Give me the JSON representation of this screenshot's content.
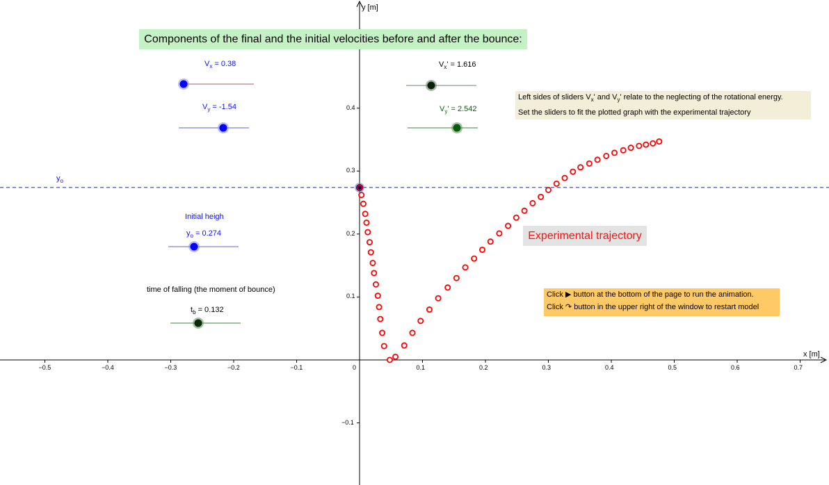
{
  "axes": {
    "x_label": "x [m]",
    "y_label": "y [m]",
    "x_ticks": [
      "−0.5",
      "−0.4",
      "−0.3",
      "−0.2",
      "−0.1",
      "0",
      "0.1",
      "0.2",
      "0.3",
      "0.4",
      "0.5",
      "0.6",
      "0.7"
    ],
    "y_ticks": [
      "0.4",
      "0.3",
      "0.2",
      "0.1",
      "−0.1"
    ]
  },
  "title": "Components of the final and the initial velocities before and after the bounce:",
  "sliders": {
    "vx": {
      "name": "V",
      "sub": "x",
      "value_text": " = 0.38",
      "value": 0.38
    },
    "vy": {
      "name": "V",
      "sub": "y",
      "value_text": " = -1.54",
      "value": -1.54
    },
    "vx_prime": {
      "name": "V",
      "sub": "x",
      "suffix": "' = 1.616",
      "value": 1.616
    },
    "vy_prime": {
      "name": "V",
      "sub": "y",
      "suffix": "' = 2.542",
      "value": 2.542
    },
    "y0": {
      "heading": "Initial heigh",
      "name": "y",
      "sub": "o",
      "value_text": " = 0.274",
      "value": 0.274
    },
    "tb": {
      "heading": "time of falling (the moment of bounce)",
      "name": "t",
      "sub": "b",
      "value_text": " = 0.132",
      "value": 0.132
    }
  },
  "y0_line_label": {
    "name": "y",
    "sub": "o"
  },
  "info": {
    "line1_a": "Left sides of sliders V",
    "line1_sub1": "x",
    "line1_b": "' and V",
    "line1_sub2": "y",
    "line1_c": "' relate to the neglecting of the rotational energy.",
    "line2": "Set the sliders to fit the plotted graph with the experimental trajectory"
  },
  "experimental_label": "Experimental trajectory",
  "animation_help": {
    "line1_a": "Click",
    "play_icon": "▶",
    "line1_b": "button at the bottom of the page to run the animation.",
    "line2_a": "Click",
    "restart_icon": "↷",
    "line2_b": "button in the upper right of the window to restart model"
  },
  "colors": {
    "trajectory": "#ff0000",
    "y0_line": "#4040ff",
    "blue_slider": "#0000ff",
    "green_slider": "#0a5a0a",
    "dark_slider": "#0a2a0a"
  },
  "chart_data": {
    "type": "scatter",
    "xlim": [
      -0.57,
      0.74
    ],
    "ylim": [
      -0.195,
      0.565
    ],
    "series": [
      {
        "name": "Experimental trajectory",
        "points": [
          [
            0.001,
            0.274
          ],
          [
            0.003,
            0.262
          ],
          [
            0.006,
            0.248
          ],
          [
            0.009,
            0.232
          ],
          [
            0.011,
            0.218
          ],
          [
            0.013,
            0.203
          ],
          [
            0.016,
            0.187
          ],
          [
            0.018,
            0.171
          ],
          [
            0.021,
            0.154
          ],
          [
            0.023,
            0.138
          ],
          [
            0.026,
            0.12
          ],
          [
            0.029,
            0.102
          ],
          [
            0.031,
            0.084
          ],
          [
            0.033,
            0.065
          ],
          [
            0.036,
            0.043
          ],
          [
            0.039,
            0.022
          ],
          [
            0.048,
            0.0
          ],
          [
            0.057,
            0.005
          ],
          [
            0.071,
            0.023
          ],
          [
            0.084,
            0.043
          ],
          [
            0.097,
            0.062
          ],
          [
            0.111,
            0.08
          ],
          [
            0.125,
            0.098
          ],
          [
            0.14,
            0.115
          ],
          [
            0.154,
            0.13
          ],
          [
            0.168,
            0.147
          ],
          [
            0.182,
            0.161
          ],
          [
            0.195,
            0.175
          ],
          [
            0.208,
            0.188
          ],
          [
            0.222,
            0.201
          ],
          [
            0.236,
            0.213
          ],
          [
            0.249,
            0.226
          ],
          [
            0.262,
            0.237
          ],
          [
            0.275,
            0.249
          ],
          [
            0.288,
            0.259
          ],
          [
            0.3,
            0.27
          ],
          [
            0.313,
            0.28
          ],
          [
            0.326,
            0.289
          ],
          [
            0.339,
            0.299
          ],
          [
            0.351,
            0.306
          ],
          [
            0.365,
            0.312
          ],
          [
            0.378,
            0.318
          ],
          [
            0.392,
            0.324
          ],
          [
            0.405,
            0.329
          ],
          [
            0.419,
            0.333
          ],
          [
            0.431,
            0.337
          ],
          [
            0.444,
            0.34
          ],
          [
            0.455,
            0.342
          ],
          [
            0.466,
            0.344
          ],
          [
            0.476,
            0.347
          ]
        ]
      }
    ],
    "y0_line": 0.274
  }
}
